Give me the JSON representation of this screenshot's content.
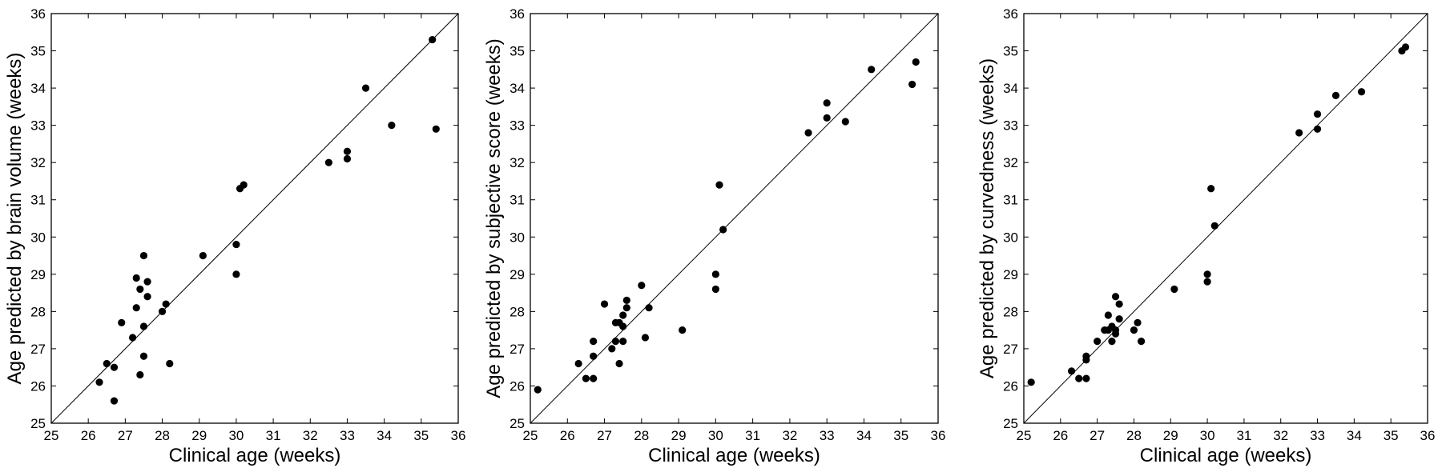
{
  "chart_data": [
    {
      "type": "scatter",
      "xlabel": "Clinical age (weeks)",
      "ylabel": "Age predicted by brain volume (weeks)",
      "xlim": [
        25,
        36
      ],
      "ylim": [
        25,
        36
      ],
      "ticks": [
        "25",
        "26",
        "27",
        "28",
        "29",
        "30",
        "31",
        "32",
        "33",
        "34",
        "35",
        "36"
      ],
      "identity_line": true,
      "grid": false,
      "points": [
        [
          26.3,
          26.1
        ],
        [
          26.5,
          26.6
        ],
        [
          26.7,
          26.5
        ],
        [
          26.7,
          25.6
        ],
        [
          26.9,
          27.7
        ],
        [
          27.2,
          27.3
        ],
        [
          27.3,
          28.9
        ],
        [
          27.3,
          28.1
        ],
        [
          27.4,
          28.6
        ],
        [
          27.4,
          26.3
        ],
        [
          27.5,
          27.6
        ],
        [
          27.5,
          26.8
        ],
        [
          27.5,
          29.5
        ],
        [
          27.6,
          28.8
        ],
        [
          27.6,
          28.4
        ],
        [
          28.0,
          28.0
        ],
        [
          28.1,
          28.2
        ],
        [
          28.2,
          26.6
        ],
        [
          29.1,
          29.5
        ],
        [
          30.0,
          29.8
        ],
        [
          30.0,
          29.0
        ],
        [
          30.1,
          31.3
        ],
        [
          30.2,
          31.4
        ],
        [
          32.5,
          32.0
        ],
        [
          33.0,
          32.3
        ],
        [
          33.0,
          32.1
        ],
        [
          33.5,
          34.0
        ],
        [
          34.2,
          33.0
        ],
        [
          35.3,
          35.3
        ],
        [
          35.4,
          32.9
        ]
      ]
    },
    {
      "type": "scatter",
      "xlabel": "Clinical age (weeks)",
      "ylabel": "Age predicted by subjective score (weeks)",
      "xlim": [
        25,
        36
      ],
      "ylim": [
        25,
        36
      ],
      "ticks": [
        "25",
        "26",
        "27",
        "28",
        "29",
        "30",
        "31",
        "32",
        "33",
        "34",
        "35",
        "36"
      ],
      "identity_line": true,
      "grid": false,
      "points": [
        [
          25.2,
          25.9
        ],
        [
          26.3,
          26.6
        ],
        [
          26.5,
          26.2
        ],
        [
          26.7,
          26.2
        ],
        [
          26.7,
          26.8
        ],
        [
          26.7,
          27.2
        ],
        [
          27.0,
          28.2
        ],
        [
          27.2,
          27.0
        ],
        [
          27.3,
          27.2
        ],
        [
          27.3,
          27.7
        ],
        [
          27.4,
          27.7
        ],
        [
          27.4,
          26.6
        ],
        [
          27.5,
          27.9
        ],
        [
          27.5,
          27.6
        ],
        [
          27.5,
          27.2
        ],
        [
          27.6,
          28.1
        ],
        [
          27.6,
          28.3
        ],
        [
          28.0,
          28.7
        ],
        [
          28.1,
          27.3
        ],
        [
          28.2,
          28.1
        ],
        [
          29.1,
          27.5
        ],
        [
          30.0,
          29.0
        ],
        [
          30.0,
          28.6
        ],
        [
          30.1,
          31.4
        ],
        [
          30.2,
          30.2
        ],
        [
          32.5,
          32.8
        ],
        [
          33.0,
          33.6
        ],
        [
          33.0,
          33.2
        ],
        [
          33.5,
          33.1
        ],
        [
          34.2,
          34.5
        ],
        [
          35.3,
          34.1
        ],
        [
          35.4,
          34.7
        ]
      ]
    },
    {
      "type": "scatter",
      "xlabel": "Clinical age (weeks)",
      "ylabel": "Age predicted by curvedness (weeks)",
      "xlim": [
        25,
        36
      ],
      "ylim": [
        25,
        36
      ],
      "ticks": [
        "25",
        "26",
        "27",
        "28",
        "29",
        "30",
        "31",
        "32",
        "33",
        "34",
        "35",
        "36"
      ],
      "identity_line": true,
      "grid": false,
      "points": [
        [
          25.2,
          26.1
        ],
        [
          26.3,
          26.4
        ],
        [
          26.5,
          26.2
        ],
        [
          26.7,
          26.7
        ],
        [
          26.7,
          26.8
        ],
        [
          26.7,
          26.2
        ],
        [
          27.0,
          27.2
        ],
        [
          27.2,
          27.5
        ],
        [
          27.3,
          27.9
        ],
        [
          27.3,
          27.5
        ],
        [
          27.4,
          27.6
        ],
        [
          27.4,
          27.2
        ],
        [
          27.5,
          28.4
        ],
        [
          27.5,
          27.5
        ],
        [
          27.5,
          27.4
        ],
        [
          27.6,
          28.2
        ],
        [
          27.6,
          27.8
        ],
        [
          28.0,
          27.5
        ],
        [
          28.1,
          27.7
        ],
        [
          28.2,
          27.2
        ],
        [
          29.1,
          28.6
        ],
        [
          30.0,
          29.0
        ],
        [
          30.0,
          28.8
        ],
        [
          30.1,
          31.3
        ],
        [
          30.2,
          30.3
        ],
        [
          32.5,
          32.8
        ],
        [
          33.0,
          33.3
        ],
        [
          33.0,
          32.9
        ],
        [
          33.5,
          33.8
        ],
        [
          34.2,
          33.9
        ],
        [
          35.3,
          35.0
        ],
        [
          35.4,
          35.1
        ]
      ]
    }
  ]
}
